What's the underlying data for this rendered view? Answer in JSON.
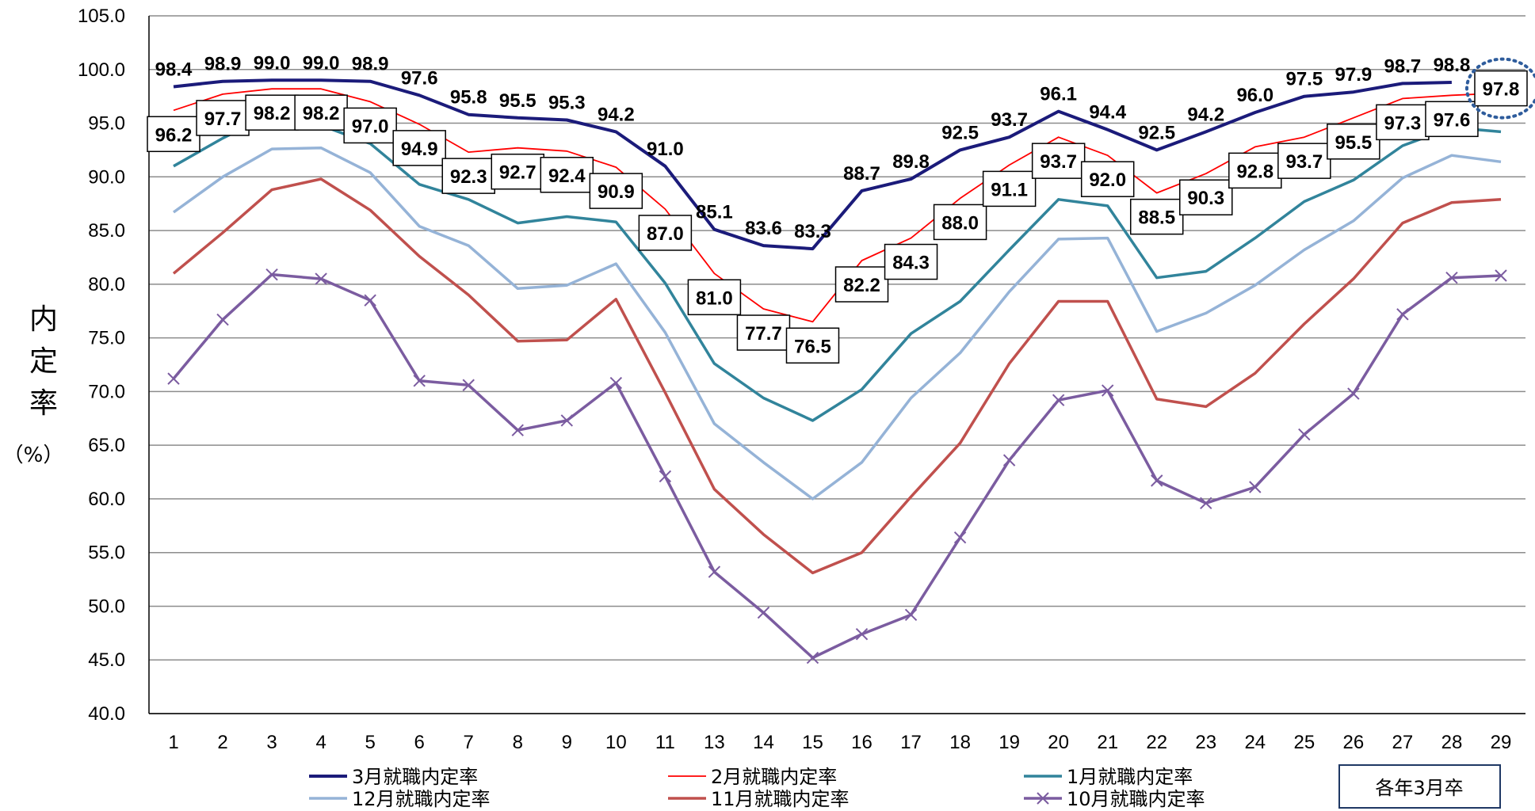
{
  "chart_data": {
    "type": "line",
    "ylabel_chars": [
      "内",
      "定",
      "率"
    ],
    "ylabel_unit": "（%）",
    "ylim": [
      40,
      105
    ],
    "yticks": [
      "40.0",
      "45.0",
      "50.0",
      "55.0",
      "60.0",
      "65.0",
      "70.0",
      "75.0",
      "80.0",
      "85.0",
      "90.0",
      "95.0",
      "100.0",
      "105.0"
    ],
    "grid": true,
    "categories": [
      "1",
      "2",
      "3",
      "4",
      "5",
      "6",
      "7",
      "8",
      "9",
      "10",
      "11",
      "13",
      "14",
      "15",
      "16",
      "17",
      "18",
      "19",
      "20",
      "21",
      "22",
      "23",
      "24",
      "25",
      "26",
      "27",
      "28",
      "29"
    ],
    "note": "各年3月卒",
    "series": [
      {
        "name": "3月就職内定率",
        "color": "#1b1b7a",
        "width": 4,
        "marker": "none",
        "values": [
          98.4,
          98.9,
          99.0,
          99.0,
          98.9,
          97.6,
          95.8,
          95.5,
          95.3,
          94.2,
          91.0,
          85.1,
          83.6,
          83.3,
          88.7,
          89.8,
          92.5,
          93.7,
          96.1,
          94.4,
          92.5,
          94.2,
          96.0,
          97.5,
          97.9,
          98.7,
          98.8,
          null
        ],
        "labels": [
          "98.4",
          "98.9",
          "99.0",
          "99.0",
          "98.9",
          "97.6",
          "95.8",
          "95.5",
          "95.3",
          "94.2",
          "91.0",
          "85.1",
          "83.6",
          "83.3",
          "88.7",
          "89.8",
          "92.5",
          "93.7",
          "96.1",
          "94.4",
          "92.5",
          "94.2",
          "96.0",
          "97.5",
          "97.9",
          "98.7",
          "98.8",
          ""
        ]
      },
      {
        "name": "2月就職内定率",
        "color": "#ff0000",
        "width": 1.8,
        "marker": "none",
        "values": [
          96.2,
          97.7,
          98.2,
          98.2,
          97.0,
          94.9,
          92.3,
          92.7,
          92.4,
          90.9,
          87.0,
          81.0,
          77.7,
          76.5,
          82.2,
          84.3,
          88.0,
          91.1,
          93.7,
          92.0,
          88.5,
          90.3,
          92.8,
          93.7,
          95.5,
          97.3,
          97.6,
          97.8
        ],
        "labels": [
          "96.2",
          "97.7",
          "98.2",
          "98.2",
          "97.0",
          "94.9",
          "92.3",
          "92.7",
          "92.4",
          "90.9",
          "87.0",
          "81.0",
          "77.7",
          "76.5",
          "82.2",
          "84.3",
          "88.0",
          "91.1",
          "93.7",
          "92.0",
          "88.5",
          "90.3",
          "92.8",
          "93.7",
          "95.5",
          "97.3",
          "97.6",
          "97.8"
        ]
      },
      {
        "name": "1月就職内定率",
        "color": "#31849b",
        "width": 3.5,
        "marker": "none",
        "values": [
          91.0,
          93.6,
          95.9,
          94.8,
          93.1,
          89.3,
          87.9,
          85.7,
          86.3,
          85.8,
          80.1,
          72.6,
          69.4,
          67.3,
          70.2,
          75.4,
          78.4,
          83.2,
          87.9,
          87.3,
          80.6,
          81.2,
          84.3,
          87.7,
          89.7,
          92.9,
          94.6,
          94.2
        ]
      },
      {
        "name": "12月就職内定率",
        "color": "#95b3d7",
        "width": 3.5,
        "marker": "none",
        "values": [
          86.7,
          90.0,
          92.6,
          92.7,
          90.4,
          85.4,
          83.6,
          79.6,
          79.9,
          81.9,
          75.5,
          67.0,
          63.4,
          60.0,
          63.4,
          69.4,
          73.6,
          79.3,
          84.2,
          84.3,
          75.6,
          77.3,
          79.9,
          83.2,
          85.9,
          89.9,
          92.0,
          91.4
        ]
      },
      {
        "name": "11月就職内定率",
        "color": "#c0504d",
        "width": 3.5,
        "marker": "none",
        "values": [
          81.0,
          84.8,
          88.8,
          89.8,
          86.9,
          82.6,
          79.0,
          74.7,
          74.8,
          78.6,
          69.9,
          60.9,
          56.7,
          53.1,
          55.0,
          60.2,
          65.2,
          72.6,
          78.4,
          78.4,
          69.3,
          68.6,
          71.7,
          76.3,
          80.5,
          85.7,
          87.6,
          87.9
        ]
      },
      {
        "name": "10月就職内定率",
        "color": "#7b5ca0",
        "width": 3.5,
        "marker": "x",
        "values": [
          71.2,
          76.7,
          80.9,
          80.5,
          78.5,
          71.0,
          70.6,
          66.4,
          67.3,
          70.8,
          62.1,
          53.2,
          49.4,
          45.2,
          47.4,
          49.2,
          56.4,
          63.6,
          69.2,
          70.1,
          61.7,
          59.6,
          61.1,
          66.0,
          69.8,
          77.2,
          80.6,
          80.8
        ]
      }
    ]
  }
}
